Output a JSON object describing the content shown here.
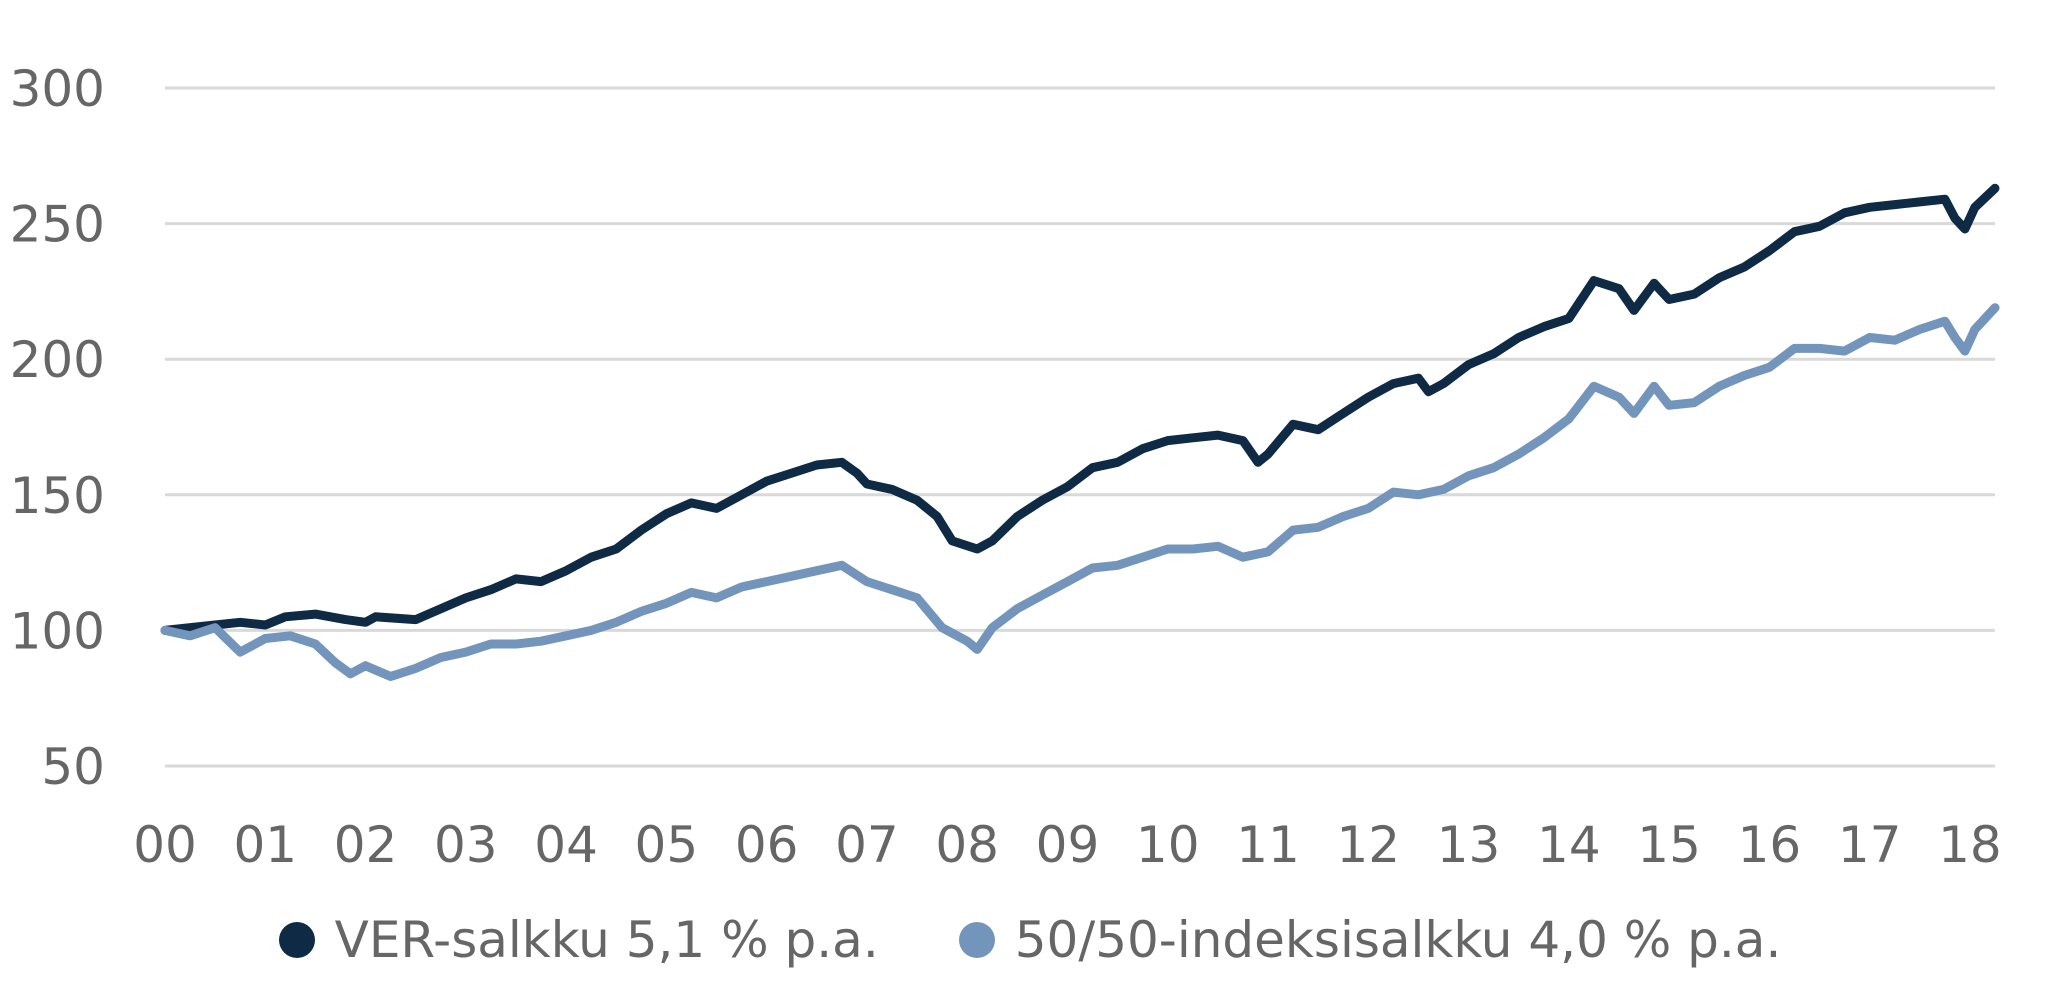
{
  "chart_data": {
    "type": "line",
    "title": "",
    "xlabel": "",
    "ylabel": "",
    "x_ticks": [
      "00",
      "01",
      "02",
      "03",
      "04",
      "05",
      "06",
      "07",
      "08",
      "09",
      "10",
      "11",
      "12",
      "13",
      "14",
      "15",
      "16",
      "17",
      "18"
    ],
    "y_ticks": [
      50,
      100,
      150,
      200,
      250,
      300
    ],
    "xlim": [
      2000.0,
      2018.25
    ],
    "ylim": [
      50,
      300
    ],
    "grid": "horizontal",
    "legend_position": "bottom-center",
    "series": [
      {
        "name": "VER-salkku 5,1 % p.a.",
        "color": "#0f2a44",
        "points": [
          [
            2000.0,
            100
          ],
          [
            2000.5,
            102
          ],
          [
            2000.75,
            103
          ],
          [
            2001.0,
            102
          ],
          [
            2001.2,
            105
          ],
          [
            2001.5,
            106
          ],
          [
            2001.8,
            104
          ],
          [
            2002.0,
            103
          ],
          [
            2002.1,
            105
          ],
          [
            2002.5,
            104
          ],
          [
            2002.75,
            108
          ],
          [
            2003.0,
            112
          ],
          [
            2003.25,
            115
          ],
          [
            2003.5,
            119
          ],
          [
            2003.75,
            118
          ],
          [
            2004.0,
            122
          ],
          [
            2004.25,
            127
          ],
          [
            2004.5,
            130
          ],
          [
            2004.75,
            137
          ],
          [
            2005.0,
            143
          ],
          [
            2005.25,
            147
          ],
          [
            2005.5,
            145
          ],
          [
            2005.75,
            150
          ],
          [
            2006.0,
            155
          ],
          [
            2006.25,
            158
          ],
          [
            2006.5,
            161
          ],
          [
            2006.75,
            162
          ],
          [
            2006.9,
            158
          ],
          [
            2007.0,
            154
          ],
          [
            2007.25,
            152
          ],
          [
            2007.5,
            148
          ],
          [
            2007.7,
            142
          ],
          [
            2007.85,
            133
          ],
          [
            2008.1,
            130
          ],
          [
            2008.25,
            133
          ],
          [
            2008.5,
            142
          ],
          [
            2008.75,
            148
          ],
          [
            2009.0,
            153
          ],
          [
            2009.25,
            160
          ],
          [
            2009.5,
            162
          ],
          [
            2009.75,
            167
          ],
          [
            2010.0,
            170
          ],
          [
            2010.25,
            171
          ],
          [
            2010.5,
            172
          ],
          [
            2010.75,
            170
          ],
          [
            2010.9,
            162
          ],
          [
            2011.0,
            165
          ],
          [
            2011.25,
            176
          ],
          [
            2011.5,
            174
          ],
          [
            2011.75,
            180
          ],
          [
            2012.0,
            186
          ],
          [
            2012.25,
            191
          ],
          [
            2012.5,
            193
          ],
          [
            2012.6,
            188
          ],
          [
            2012.75,
            191
          ],
          [
            2013.0,
            198
          ],
          [
            2013.25,
            202
          ],
          [
            2013.5,
            208
          ],
          [
            2013.75,
            212
          ],
          [
            2014.0,
            215
          ],
          [
            2014.25,
            229
          ],
          [
            2014.5,
            226
          ],
          [
            2014.65,
            218
          ],
          [
            2014.85,
            228
          ],
          [
            2015.0,
            222
          ],
          [
            2015.25,
            224
          ],
          [
            2015.5,
            230
          ],
          [
            2015.75,
            234
          ],
          [
            2016.0,
            240
          ],
          [
            2016.25,
            247
          ],
          [
            2016.5,
            249
          ],
          [
            2016.75,
            254
          ],
          [
            2017.0,
            256
          ],
          [
            2017.25,
            257
          ],
          [
            2017.5,
            258
          ],
          [
            2017.75,
            259
          ],
          [
            2017.85,
            252
          ],
          [
            2017.95,
            248
          ],
          [
            2018.05,
            256
          ],
          [
            2018.25,
            263
          ]
        ]
      },
      {
        "name": "50/50-indeksisalkku 4,0 % p.a.",
        "color": "#7395bb",
        "points": [
          [
            2000.0,
            100
          ],
          [
            2000.25,
            98
          ],
          [
            2000.5,
            101
          ],
          [
            2000.75,
            92
          ],
          [
            2001.0,
            97
          ],
          [
            2001.25,
            98
          ],
          [
            2001.5,
            95
          ],
          [
            2001.7,
            88
          ],
          [
            2001.85,
            84
          ],
          [
            2002.0,
            87
          ],
          [
            2002.25,
            83
          ],
          [
            2002.5,
            86
          ],
          [
            2002.75,
            90
          ],
          [
            2003.0,
            92
          ],
          [
            2003.25,
            95
          ],
          [
            2003.5,
            95
          ],
          [
            2003.75,
            96
          ],
          [
            2004.0,
            98
          ],
          [
            2004.25,
            100
          ],
          [
            2004.5,
            103
          ],
          [
            2004.75,
            107
          ],
          [
            2005.0,
            110
          ],
          [
            2005.25,
            114
          ],
          [
            2005.5,
            112
          ],
          [
            2005.75,
            116
          ],
          [
            2006.0,
            118
          ],
          [
            2006.25,
            120
          ],
          [
            2006.5,
            122
          ],
          [
            2006.75,
            124
          ],
          [
            2007.0,
            118
          ],
          [
            2007.25,
            115
          ],
          [
            2007.5,
            112
          ],
          [
            2007.75,
            101
          ],
          [
            2008.0,
            96
          ],
          [
            2008.1,
            93
          ],
          [
            2008.25,
            101
          ],
          [
            2008.5,
            108
          ],
          [
            2008.75,
            113
          ],
          [
            2009.0,
            118
          ],
          [
            2009.25,
            123
          ],
          [
            2009.5,
            124
          ],
          [
            2009.75,
            127
          ],
          [
            2010.0,
            130
          ],
          [
            2010.25,
            130
          ],
          [
            2010.5,
            131
          ],
          [
            2010.75,
            127
          ],
          [
            2011.0,
            129
          ],
          [
            2011.25,
            137
          ],
          [
            2011.5,
            138
          ],
          [
            2011.75,
            142
          ],
          [
            2012.0,
            145
          ],
          [
            2012.25,
            151
          ],
          [
            2012.5,
            150
          ],
          [
            2012.75,
            152
          ],
          [
            2013.0,
            157
          ],
          [
            2013.25,
            160
          ],
          [
            2013.5,
            165
          ],
          [
            2013.75,
            171
          ],
          [
            2014.0,
            178
          ],
          [
            2014.25,
            190
          ],
          [
            2014.5,
            186
          ],
          [
            2014.65,
            180
          ],
          [
            2014.85,
            190
          ],
          [
            2015.0,
            183
          ],
          [
            2015.25,
            184
          ],
          [
            2015.5,
            190
          ],
          [
            2015.75,
            194
          ],
          [
            2016.0,
            197
          ],
          [
            2016.25,
            204
          ],
          [
            2016.5,
            204
          ],
          [
            2016.75,
            203
          ],
          [
            2017.0,
            208
          ],
          [
            2017.25,
            207
          ],
          [
            2017.5,
            211
          ],
          [
            2017.75,
            214
          ],
          [
            2017.85,
            208
          ],
          [
            2017.95,
            203
          ],
          [
            2018.05,
            211
          ],
          [
            2018.25,
            219
          ]
        ]
      }
    ]
  }
}
